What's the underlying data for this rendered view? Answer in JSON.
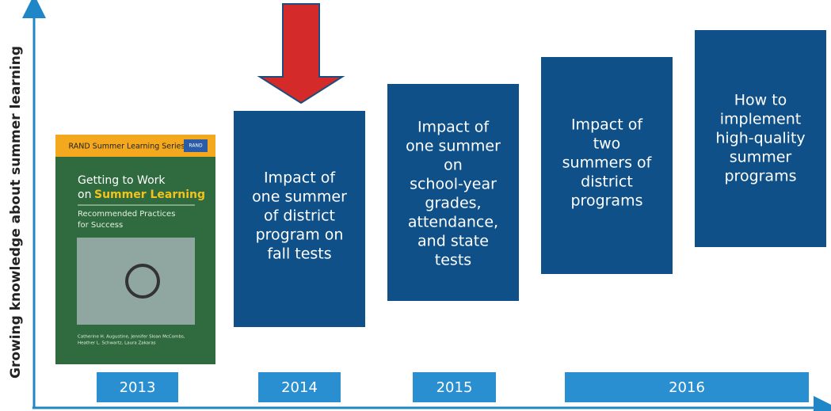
{
  "axis_label": "Growing knowledge about summer learning",
  "cover": {
    "series": "RAND Summer Learning Series",
    "logo": "RAND",
    "title_lines": [
      "Getting to Work",
      "on"
    ],
    "title_highlight": "Summer Learning",
    "subtitle_lines": [
      "Recommended Practices",
      "for Success"
    ],
    "author_lines": [
      "Catherine H. Augustine, Jennifer Sloan McCombs,",
      "Heather L. Schwartz, Laura Zakaras"
    ]
  },
  "boxes": [
    {
      "lines": [
        "Impact of",
        "one summer",
        "of district",
        "program on",
        "fall tests"
      ]
    },
    {
      "lines": [
        "Impact of",
        "one summer",
        "on",
        "school-year",
        "grades,",
        "attendance,",
        "and state",
        "tests"
      ]
    },
    {
      "lines": [
        "Impact of",
        "two",
        "summers of",
        "district",
        "programs"
      ]
    },
    {
      "lines": [
        "How to",
        "implement",
        "high-quality",
        "summer",
        "programs"
      ]
    }
  ],
  "years": [
    "2013",
    "2014",
    "2015",
    "2016"
  ]
}
